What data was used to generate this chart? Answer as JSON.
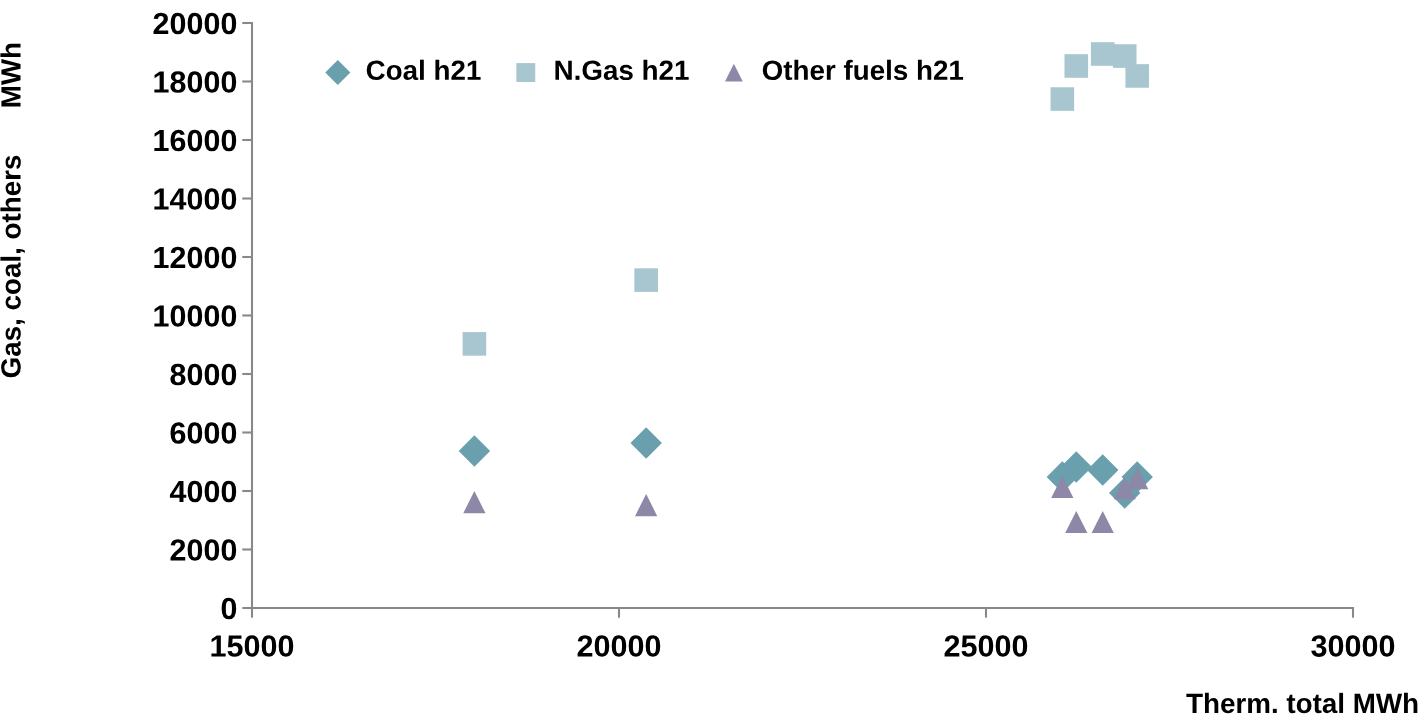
{
  "chart_data": {
    "type": "scatter",
    "xlabel": "Therm. total MWh",
    "ylabel": "Gas, coal, others      MWh",
    "xlim": [
      15000,
      30000
    ],
    "xticks": [
      15000,
      20000,
      25000,
      30000
    ],
    "ylim": [
      0,
      20000
    ],
    "yticks": [
      0,
      2000,
      4000,
      6000,
      8000,
      10000,
      12000,
      14000,
      16000,
      18000,
      20000
    ],
    "grid": false,
    "legend": "top left",
    "series": [
      {
        "name": "Coal h21",
        "color": "#6a9fae",
        "marker": "diamond",
        "x": [
          18030,
          20370,
          26040,
          26230,
          26590,
          26890,
          27060
        ],
        "values": [
          5370,
          5640,
          4480,
          4820,
          4720,
          3930,
          4480
        ]
      },
      {
        "name": "N.Gas h21",
        "color": "#a8c6d0",
        "marker": "square",
        "x": [
          18030,
          20370,
          26040,
          26230,
          26590,
          26890,
          27060
        ],
        "values": [
          9030,
          11210,
          17400,
          18530,
          18940,
          18870,
          18190
        ]
      },
      {
        "name": "Other fuels h21",
        "color": "#8e88a8",
        "marker": "triangle",
        "x": [
          18030,
          20370,
          26040,
          26230,
          26590,
          26890,
          27060
        ],
        "values": [
          3620,
          3520,
          4140,
          2940,
          2940,
          4100,
          4440
        ]
      }
    ]
  }
}
